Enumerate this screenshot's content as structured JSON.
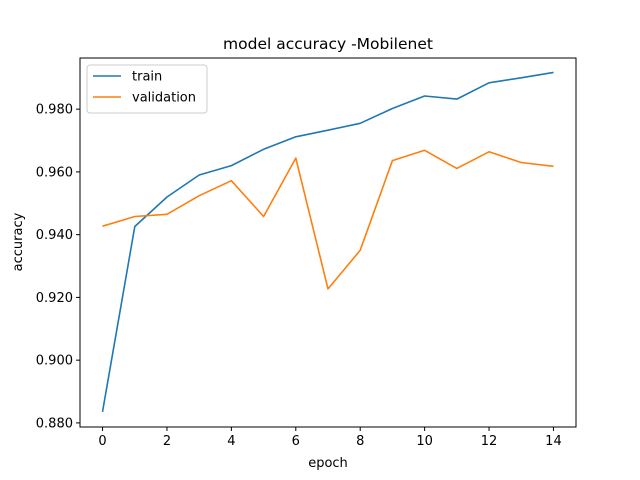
{
  "chart_data": {
    "type": "line",
    "title": "model accuracy -Mobilenet",
    "xlabel": "epoch",
    "ylabel": "accuracy",
    "x": [
      0,
      1,
      2,
      3,
      4,
      5,
      6,
      7,
      8,
      9,
      10,
      11,
      12,
      13,
      14
    ],
    "xlim": [
      -0.7,
      14.7
    ],
    "ylim": [
      0.8787,
      0.9963
    ],
    "xticks": [
      0,
      2,
      4,
      6,
      8,
      10,
      12,
      14
    ],
    "xtick_labels": [
      "0",
      "2",
      "4",
      "6",
      "8",
      "10",
      "12",
      "14"
    ],
    "yticks": [
      0.88,
      0.9,
      0.92,
      0.94,
      0.96,
      0.98
    ],
    "ytick_labels": [
      "0.880",
      "0.900",
      "0.920",
      "0.940",
      "0.960",
      "0.980"
    ],
    "grid": false,
    "legend_position": "upper-left",
    "series": [
      {
        "name": "train",
        "color": "#1f77b4",
        "values": [
          0.8835,
          0.9426,
          0.952,
          0.959,
          0.962,
          0.9672,
          0.9712,
          0.9733,
          0.9755,
          0.9802,
          0.9842,
          0.9832,
          0.9884,
          0.99,
          0.9917
        ]
      },
      {
        "name": "validation",
        "color": "#ff7f0e",
        "values": [
          0.9427,
          0.9458,
          0.9465,
          0.9524,
          0.9572,
          0.9458,
          0.9644,
          0.9227,
          0.935,
          0.9636,
          0.9669,
          0.9611,
          0.9664,
          0.963,
          0.9618
        ]
      }
    ]
  }
}
